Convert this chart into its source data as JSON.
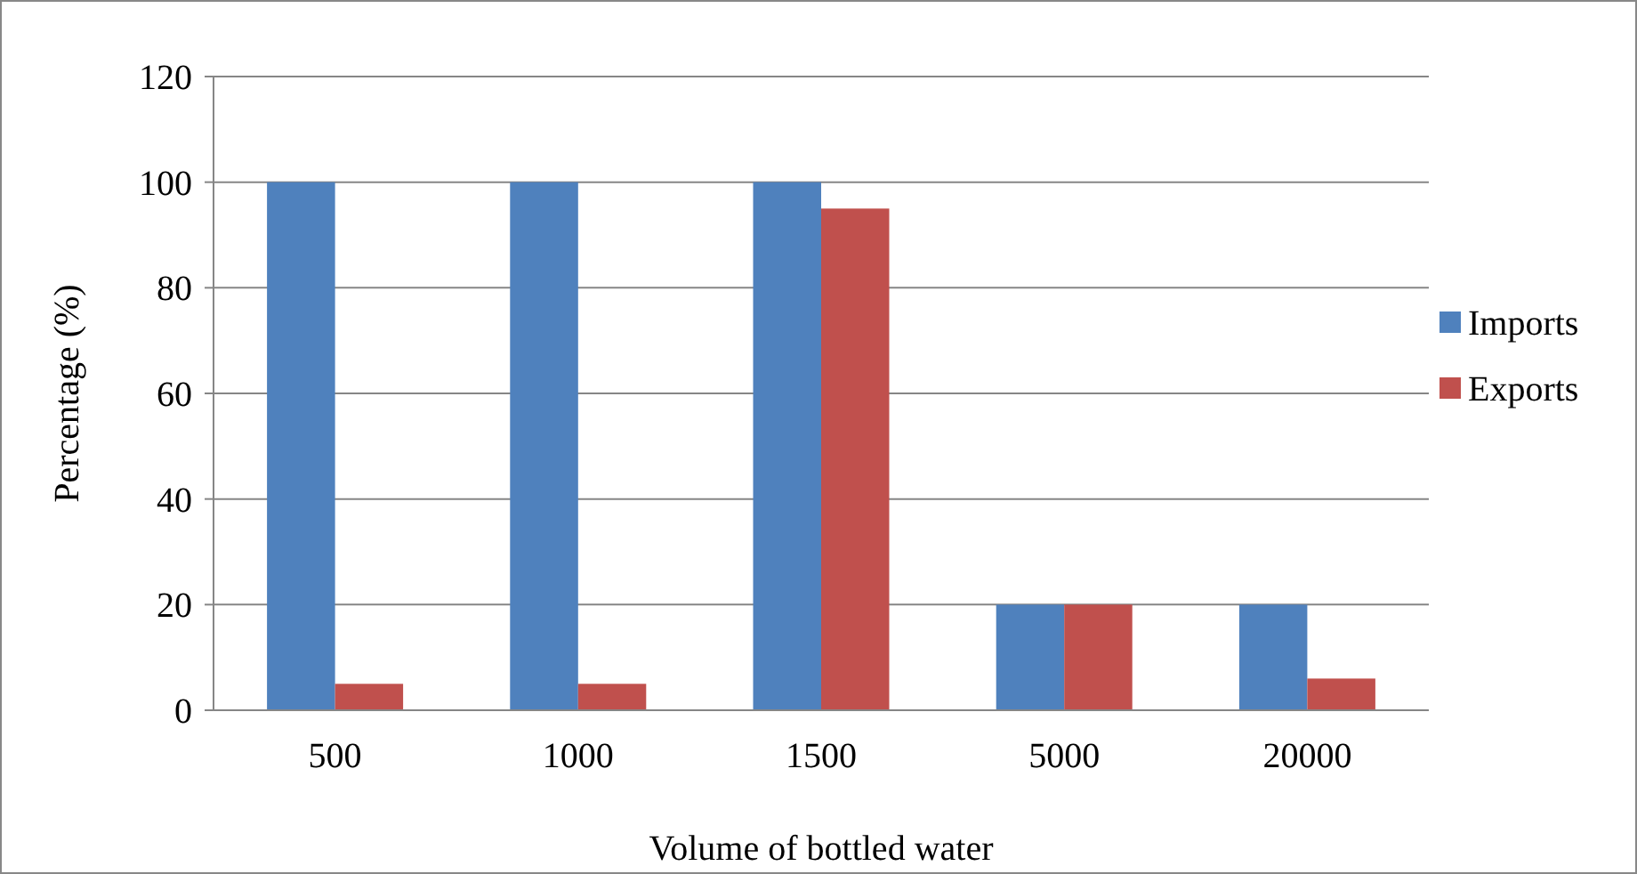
{
  "chart_data": {
    "type": "bar",
    "xlabel": "Volume of bottled water",
    "ylabel": "Percentage (%)",
    "categories": [
      "500",
      "1000",
      "1500",
      "5000",
      "20000"
    ],
    "series": [
      {
        "name": "Imports",
        "color": "#4f81bd",
        "values": [
          100,
          100,
          100,
          20,
          20
        ]
      },
      {
        "name": "Exports",
        "color": "#c0504d",
        "values": [
          5,
          5,
          95,
          20,
          6
        ]
      }
    ],
    "ylim": [
      0,
      120
    ],
    "yticks": [
      0,
      20,
      40,
      60,
      80,
      100,
      120
    ],
    "grid": "y",
    "legend": "right"
  }
}
